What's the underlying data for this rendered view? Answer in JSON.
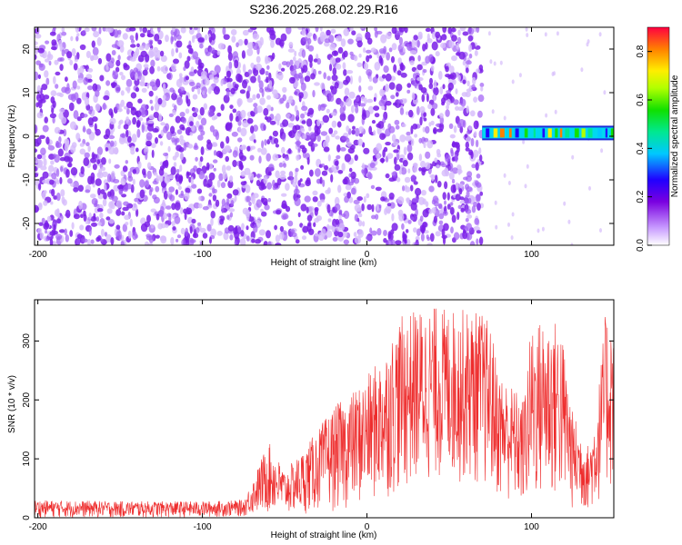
{
  "title": "S236.2025.268.02.29.R16",
  "chart_data": [
    {
      "type": "heatmap",
      "xlabel": "Height of straight line (km)",
      "ylabel": "Frequency (Hz)",
      "xlim": [
        -202,
        150
      ],
      "ylim": [
        -25,
        25
      ],
      "x_ticks": [
        -200,
        -100,
        0,
        100
      ],
      "y_ticks": [
        -20,
        -10,
        0,
        10,
        20
      ],
      "colorbar": {
        "label": "Normalized spectral amplitude",
        "range": [
          0,
          0.9
        ],
        "ticks": [
          0.0,
          0.2,
          0.4,
          0.6,
          0.8
        ]
      },
      "regions": [
        {
          "x_range": [
            -202,
            70
          ],
          "y_range": [
            -25,
            25
          ],
          "description": "broadband noise",
          "amplitude_range": [
            0.0,
            0.15
          ]
        },
        {
          "x_range": [
            70,
            150
          ],
          "y_range": [
            -0.5,
            2
          ],
          "description": "narrow signal band near 1 Hz",
          "amplitude_range": [
            0.3,
            0.9
          ]
        }
      ],
      "grid": false
    },
    {
      "type": "line",
      "xlabel": "Height of straight line (km)",
      "ylabel": "SNR (10 * v/v)",
      "xlim": [
        -202,
        150
      ],
      "ylim": [
        0,
        370
      ],
      "x_ticks": [
        -200,
        -100,
        0,
        100
      ],
      "y_ticks": [
        0,
        100,
        200,
        300
      ],
      "series": [
        {
          "color": "#ee2d2d",
          "envelope": [
            {
              "x": -202,
              "low": 0,
              "high": 30
            },
            {
              "x": -150,
              "low": 0,
              "high": 28
            },
            {
              "x": -100,
              "low": 0,
              "high": 28
            },
            {
              "x": -75,
              "low": 2,
              "high": 30
            },
            {
              "x": -70,
              "low": 5,
              "high": 60
            },
            {
              "x": -60,
              "low": 5,
              "high": 130
            },
            {
              "x": -50,
              "low": 5,
              "high": 80
            },
            {
              "x": -40,
              "low": 5,
              "high": 110
            },
            {
              "x": -30,
              "low": 10,
              "high": 150
            },
            {
              "x": -20,
              "low": 10,
              "high": 190
            },
            {
              "x": -10,
              "low": 15,
              "high": 210
            },
            {
              "x": 0,
              "low": 20,
              "high": 240
            },
            {
              "x": 10,
              "low": 30,
              "high": 280
            },
            {
              "x": 20,
              "low": 40,
              "high": 340
            },
            {
              "x": 30,
              "low": 50,
              "high": 355
            },
            {
              "x": 40,
              "low": 60,
              "high": 360
            },
            {
              "x": 50,
              "low": 60,
              "high": 355
            },
            {
              "x": 60,
              "low": 55,
              "high": 355
            },
            {
              "x": 70,
              "low": 50,
              "high": 350
            },
            {
              "x": 75,
              "low": 40,
              "high": 330
            },
            {
              "x": 80,
              "low": 30,
              "high": 250
            },
            {
              "x": 90,
              "low": 20,
              "high": 220
            },
            {
              "x": 95,
              "low": 10,
              "high": 200
            },
            {
              "x": 100,
              "low": 20,
              "high": 330
            },
            {
              "x": 110,
              "low": 20,
              "high": 345
            },
            {
              "x": 118,
              "low": 20,
              "high": 330
            },
            {
              "x": 125,
              "low": 10,
              "high": 180
            },
            {
              "x": 135,
              "low": 10,
              "high": 120
            },
            {
              "x": 140,
              "low": 20,
              "high": 200
            },
            {
              "x": 145,
              "low": 40,
              "high": 350
            },
            {
              "x": 150,
              "low": 40,
              "high": 345
            }
          ]
        }
      ],
      "grid": false
    }
  ]
}
